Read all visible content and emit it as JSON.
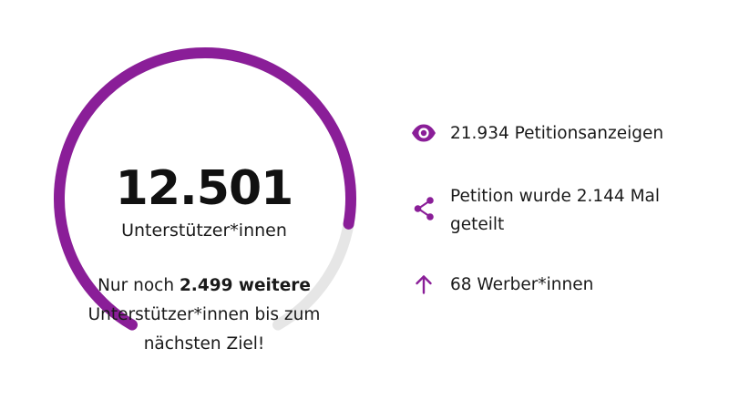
{
  "colors": {
    "accent": "#8a1e98",
    "track": "#e6e6e6",
    "text": "#1a1a1a"
  },
  "progress": {
    "count": "12.501",
    "label": "Unterstützer*innen",
    "fraction": 0.8334,
    "goal_prefix": "Nur noch ",
    "goal_bold": "2.499 weitere",
    "goal_suffix": " Unterstützer*innen bis zum nächsten Ziel!"
  },
  "stats": {
    "views": {
      "icon": "eye-icon",
      "text": "21.934 Petitionsanzeigen"
    },
    "shares": {
      "icon": "share-icon",
      "text": "Petition wurde 2.144 Mal geteilt"
    },
    "recruiters": {
      "icon": "arrow-up-icon",
      "text": "68 Werber*innen"
    }
  }
}
